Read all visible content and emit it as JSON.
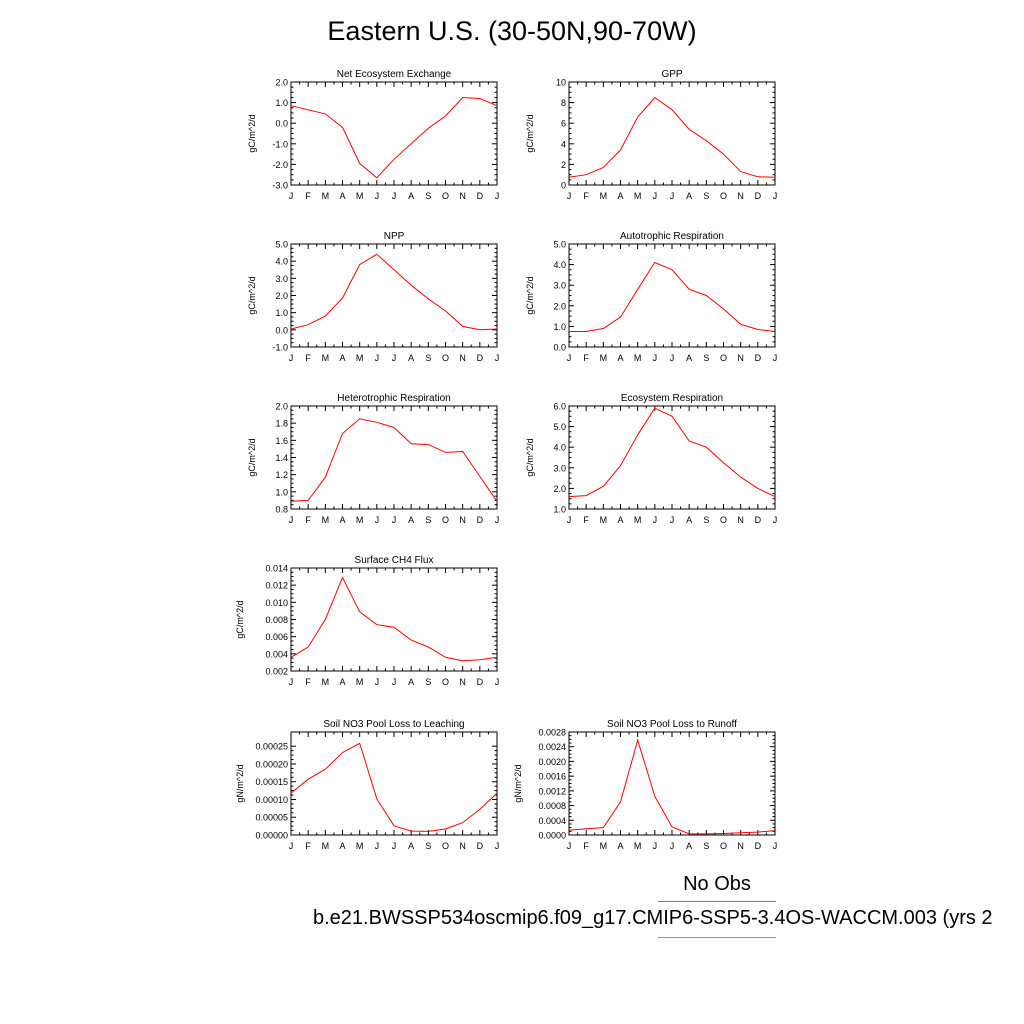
{
  "title": "Eastern U.S. (30-50N,90-70W)",
  "legend": {
    "obs_label": "No Obs",
    "obs_color": "#6b6bf0",
    "model_color": "#f07070"
  },
  "case_label": "b.e21.BWSSP534oscmip6.f09_g17.CMIP6-SSP5-3.4OS-WACCM.003 (yrs 2",
  "line_color": "#ff0000",
  "chart_data": [
    {
      "id": "nee",
      "type": "line",
      "title": "Net Ecosystem Exchange",
      "ylabel": "gC/m^2/d",
      "categories": [
        "J",
        "F",
        "M",
        "A",
        "M",
        "J",
        "J",
        "A",
        "S",
        "O",
        "N",
        "D",
        "J"
      ],
      "values": [
        0.85,
        0.65,
        0.45,
        -0.2,
        -1.95,
        -2.65,
        -1.75,
        -1.0,
        -0.25,
        0.35,
        1.25,
        1.2,
        0.85
      ],
      "ylim": [
        -3.0,
        2.0
      ],
      "yticks": [
        -3.0,
        -2.0,
        -1.0,
        0.0,
        1.0,
        2.0
      ],
      "ytick_labels": [
        "-3.0",
        "-2.0",
        "-1.0",
        "0.0",
        "1.0",
        "2.0"
      ]
    },
    {
      "id": "gpp",
      "type": "line",
      "title": "GPP",
      "ylabel": "gC/m^2/d",
      "categories": [
        "J",
        "F",
        "M",
        "A",
        "M",
        "J",
        "J",
        "A",
        "S",
        "O",
        "N",
        "D",
        "J"
      ],
      "values": [
        0.75,
        1.0,
        1.7,
        3.4,
        6.6,
        8.5,
        7.3,
        5.4,
        4.3,
        3.0,
        1.3,
        0.8,
        0.75
      ],
      "ylim": [
        0,
        10
      ],
      "yticks": [
        0,
        2,
        4,
        6,
        8,
        10
      ],
      "ytick_labels": [
        "0",
        "2",
        "4",
        "6",
        "8",
        "10"
      ]
    },
    {
      "id": "npp",
      "type": "line",
      "title": "NPP",
      "ylabel": "gC/m^2/d",
      "categories": [
        "J",
        "F",
        "M",
        "A",
        "M",
        "J",
        "J",
        "A",
        "S",
        "O",
        "N",
        "D",
        "J"
      ],
      "values": [
        0.05,
        0.3,
        0.8,
        1.85,
        3.8,
        4.4,
        3.5,
        2.6,
        1.8,
        1.1,
        0.2,
        0.0,
        0.05
      ],
      "ylim": [
        -1.0,
        5.0
      ],
      "yticks": [
        -1.0,
        0.0,
        1.0,
        2.0,
        3.0,
        4.0,
        5.0
      ],
      "ytick_labels": [
        "-1.0",
        "0.0",
        "1.0",
        "2.0",
        "3.0",
        "4.0",
        "5.0"
      ]
    },
    {
      "id": "ar",
      "type": "line",
      "title": "Autotrophic Respiration",
      "ylabel": "gC/m^2/d",
      "categories": [
        "J",
        "F",
        "M",
        "A",
        "M",
        "J",
        "J",
        "A",
        "S",
        "O",
        "N",
        "D",
        "J"
      ],
      "values": [
        0.75,
        0.75,
        0.9,
        1.45,
        2.8,
        4.1,
        3.75,
        2.8,
        2.5,
        1.85,
        1.1,
        0.85,
        0.75
      ],
      "ylim": [
        0.0,
        5.0
      ],
      "yticks": [
        0.0,
        1.0,
        2.0,
        3.0,
        4.0,
        5.0
      ],
      "ytick_labels": [
        "0.0",
        "1.0",
        "2.0",
        "3.0",
        "4.0",
        "5.0"
      ]
    },
    {
      "id": "hr",
      "type": "line",
      "title": "Heterotrophic Respiration",
      "ylabel": "gC/m^2/d",
      "categories": [
        "J",
        "F",
        "M",
        "A",
        "M",
        "J",
        "J",
        "A",
        "S",
        "O",
        "N",
        "D",
        "J"
      ],
      "values": [
        0.89,
        0.9,
        1.17,
        1.68,
        1.85,
        1.81,
        1.75,
        1.56,
        1.55,
        1.46,
        1.47,
        1.18,
        0.89
      ],
      "ylim": [
        0.8,
        2.0
      ],
      "yticks": [
        0.8,
        1.0,
        1.2,
        1.4,
        1.6,
        1.8,
        2.0
      ],
      "ytick_labels": [
        "0.8",
        "1.0",
        "1.2",
        "1.4",
        "1.6",
        "1.8",
        "2.0"
      ]
    },
    {
      "id": "er",
      "type": "line",
      "title": "Ecosystem Respiration",
      "ylabel": "gC/m^2/d",
      "categories": [
        "J",
        "F",
        "M",
        "A",
        "M",
        "J",
        "J",
        "A",
        "S",
        "O",
        "N",
        "D",
        "J"
      ],
      "values": [
        1.6,
        1.65,
        2.1,
        3.1,
        4.6,
        5.9,
        5.5,
        4.3,
        4.0,
        3.25,
        2.55,
        2.0,
        1.6
      ],
      "ylim": [
        1.0,
        6.0
      ],
      "yticks": [
        1.0,
        2.0,
        3.0,
        4.0,
        5.0,
        6.0
      ],
      "ytick_labels": [
        "1.0",
        "2.0",
        "3.0",
        "4.0",
        "5.0",
        "6.0"
      ]
    },
    {
      "id": "ch4",
      "type": "line",
      "title": "Surface CH4 Flux",
      "ylabel": "gC/m^2/d",
      "categories": [
        "J",
        "F",
        "M",
        "A",
        "M",
        "J",
        "J",
        "A",
        "S",
        "O",
        "N",
        "D",
        "J"
      ],
      "values": [
        0.0036,
        0.0048,
        0.008,
        0.0129,
        0.0089,
        0.0074,
        0.0071,
        0.0056,
        0.0048,
        0.0036,
        0.0032,
        0.0033,
        0.0036
      ],
      "ylim": [
        0.002,
        0.014
      ],
      "yticks": [
        0.002,
        0.004,
        0.006,
        0.008,
        0.01,
        0.012,
        0.014
      ],
      "ytick_labels": [
        "0.002",
        "0.004",
        "0.006",
        "0.008",
        "0.010",
        "0.012",
        "0.014"
      ]
    },
    {
      "id": "leach",
      "type": "line",
      "title": "Soil NO3 Pool Loss to Leaching",
      "ylabel": "gN/m^2/d",
      "categories": [
        "J",
        "F",
        "M",
        "A",
        "M",
        "J",
        "J",
        "A",
        "S",
        "O",
        "N",
        "D",
        "J"
      ],
      "values": [
        0.000118,
        0.000157,
        0.000185,
        0.000232,
        0.000258,
        0.000102,
        2.6e-05,
        1.1e-05,
        1e-05,
        1.7e-05,
        3.5e-05,
        7.2e-05,
        0.000118
      ],
      "ylim": [
        0.0,
        0.00029
      ],
      "yticks": [
        0.0,
        5e-05,
        0.0001,
        0.00015,
        0.0002,
        0.00025
      ],
      "ytick_labels": [
        "0.00000",
        "0.00005",
        "0.00010",
        "0.00015",
        "0.00020",
        "0.00025"
      ]
    },
    {
      "id": "runoff",
      "type": "line",
      "title": "Soil NO3 Pool Loss to Runoff",
      "ylabel": "gN/m^2/d",
      "categories": [
        "J",
        "F",
        "M",
        "A",
        "M",
        "J",
        "J",
        "A",
        "S",
        "O",
        "N",
        "D",
        "J"
      ],
      "values": [
        0.00013,
        0.00017,
        0.0002,
        0.0009,
        0.00258,
        0.00105,
        0.00022,
        3e-05,
        3e-05,
        4e-05,
        6e-05,
        8e-05,
        0.00012
      ],
      "ylim": [
        0.0,
        0.0028
      ],
      "yticks": [
        0.0,
        0.0004,
        0.0008,
        0.0012,
        0.0016,
        0.002,
        0.0024,
        0.0028
      ],
      "ytick_labels": [
        "0.0000",
        "0.0004",
        "0.0008",
        "0.0012",
        "0.0016",
        "0.0020",
        "0.0024",
        "0.0028"
      ]
    }
  ]
}
